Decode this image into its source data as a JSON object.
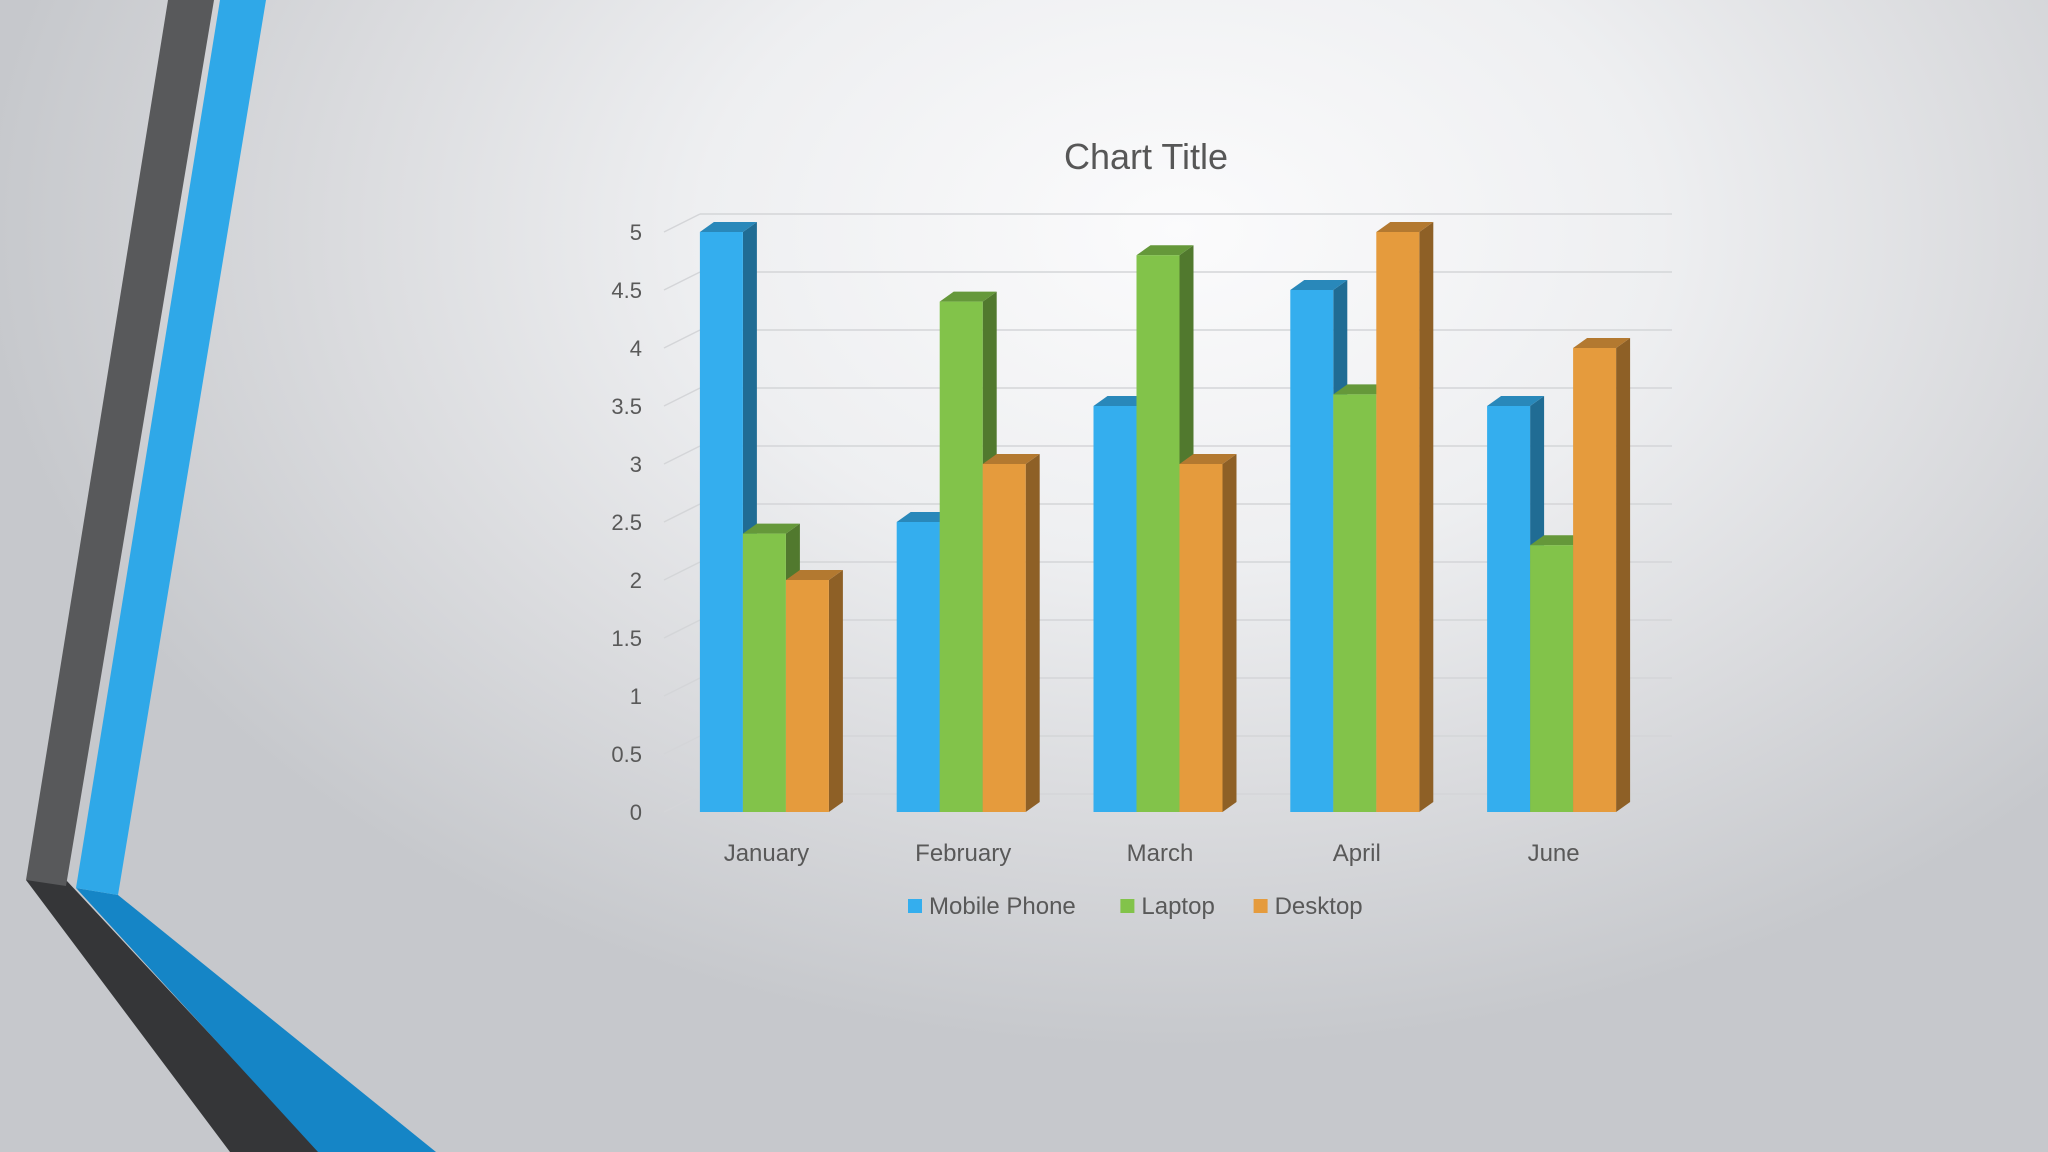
{
  "chart_data": {
    "type": "bar",
    "title": "Chart Title",
    "xlabel": "",
    "ylabel": "",
    "categories": [
      "January",
      "February",
      "March",
      "April",
      "June"
    ],
    "series": [
      {
        "name": "Mobile Phone",
        "values": [
          5,
          2.5,
          3.5,
          4.5,
          3.5
        ],
        "color": "#34aeee"
      },
      {
        "name": "Laptop",
        "values": [
          2.4,
          4.4,
          4.8,
          3.6,
          2.3
        ],
        "color": "#82c34a"
      },
      {
        "name": "Desktop",
        "values": [
          2,
          3,
          3,
          5,
          4
        ],
        "color": "#e59b3d"
      }
    ],
    "y_ticks": [
      "0",
      "0.5",
      "1",
      "1.5",
      "2",
      "2.5",
      "3",
      "3.5",
      "4",
      "4.5",
      "5"
    ],
    "ylim": [
      0,
      5
    ],
    "grid": true,
    "legend": "bottom",
    "style": "3d-clustered-column"
  },
  "decoration": {
    "accent_color": "#2fa8e8",
    "accent_dark_color": "#1585c6",
    "stripe_color": "#4f5153"
  }
}
